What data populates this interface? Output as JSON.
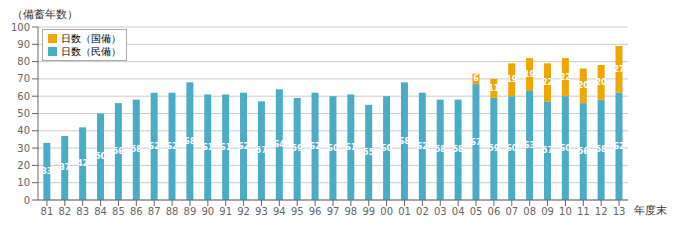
{
  "chart_data": {
    "type": "bar",
    "stacked": true,
    "categories": [
      "81",
      "82",
      "83",
      "84",
      "85",
      "86",
      "87",
      "88",
      "89",
      "90",
      "91",
      "92",
      "93",
      "94",
      "95",
      "96",
      "97",
      "98",
      "99",
      "00",
      "01",
      "02",
      "03",
      "04",
      "05",
      "06",
      "07",
      "08",
      "09",
      "10",
      "11",
      "12",
      "13"
    ],
    "series": [
      {
        "name": "日数（民備）",
        "color": "#4bacc6",
        "values": [
          33,
          37,
          42,
          50,
          56,
          58,
          62,
          62,
          68,
          61,
          61,
          62,
          57,
          64,
          59,
          62,
          60,
          61,
          55,
          60,
          68,
          62,
          58,
          58,
          67,
          59,
          60,
          63,
          57,
          60,
          56,
          58,
          62
        ]
      },
      {
        "name": "日数（国備）",
        "color": "#f0a500",
        "values": [
          0,
          0,
          0,
          0,
          0,
          0,
          0,
          0,
          0,
          0,
          0,
          0,
          0,
          0,
          0,
          0,
          0,
          0,
          0,
          0,
          0,
          0,
          0,
          0,
          6,
          11,
          19,
          19,
          22,
          22,
          20,
          20,
          27
        ]
      }
    ],
    "ylabel": "（備蓄年数）",
    "xlabel": "年度末",
    "ylim": [
      0,
      100
    ],
    "yticks": [
      0,
      10,
      20,
      30,
      40,
      50,
      60,
      70,
      80,
      90,
      100
    ],
    "grid": true,
    "legend": "upper left",
    "data_labels": true
  }
}
